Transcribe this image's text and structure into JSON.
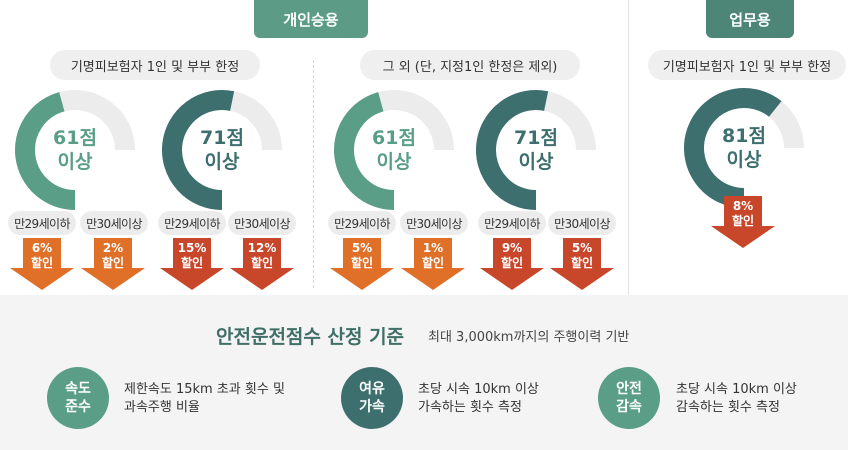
{
  "header": {
    "personal_tab": "개인승용",
    "business_tab": "업무용"
  },
  "pills": {
    "personal_limited": "기명피보험자 1인 및 부부 한정",
    "personal_other": "그 외 (단, 지정1인 한정은 제외)",
    "business_limited": "기명피보험자 1인 및 부부 한정"
  },
  "gauges": [
    {
      "line1": "61점",
      "line2": "이상",
      "fill_ratio": 0.61,
      "color": "#5a9e87"
    },
    {
      "line1": "71점",
      "line2": "이상",
      "fill_ratio": 0.71,
      "color": "#3d6f6e"
    },
    {
      "line1": "61점",
      "line2": "이상",
      "fill_ratio": 0.61,
      "color": "#5a9e87"
    },
    {
      "line1": "71점",
      "line2": "이상",
      "fill_ratio": 0.71,
      "color": "#3d6f6e"
    },
    {
      "line1": "81점",
      "line2": "이상",
      "fill_ratio": 0.81,
      "color": "#3d6f6e"
    }
  ],
  "age_labels": {
    "under29": "만29세이하",
    "over30": "만30세이상"
  },
  "discounts": [
    {
      "line1": "6%",
      "line2": "할인",
      "color": "#e07028"
    },
    {
      "line1": "2%",
      "line2": "할인",
      "color": "#e07028"
    },
    {
      "line1": "15%",
      "line2": "할인",
      "color": "#c8472a"
    },
    {
      "line1": "12%",
      "line2": "할인",
      "color": "#c8472a"
    },
    {
      "line1": "5%",
      "line2": "할인",
      "color": "#e07028"
    },
    {
      "line1": "1%",
      "line2": "할인",
      "color": "#e07028"
    },
    {
      "line1": "9%",
      "line2": "할인",
      "color": "#c8472a"
    },
    {
      "line1": "5%",
      "line2": "할인",
      "color": "#c8472a"
    },
    {
      "line1": "8%",
      "line2": "할인",
      "color": "#c8472a"
    }
  ],
  "criteria": {
    "title": "안전운전점수 산정 기준",
    "subtitle": "최대 3,000km까지의 주행이력 기반",
    "items": [
      {
        "circle_line1": "속도",
        "circle_line2": "준수",
        "desc_line1": "제한속도 15km 초과 횟수 및",
        "desc_line2": "과속주행 비율",
        "color": "#5a9e87"
      },
      {
        "circle_line1": "여유",
        "circle_line2": "가속",
        "desc_line1": "초당 시속 10km 이상",
        "desc_line2": "가속하는 횟수 측정",
        "color": "#3d6f6e"
      },
      {
        "circle_line1": "안전",
        "circle_line2": "감속",
        "desc_line1": "초당 시속 10km 이상",
        "desc_line2": "감속하는 횟수 측정",
        "color": "#5a9e87"
      }
    ]
  },
  "colors": {
    "track": "#ececec",
    "teal_light": "#5a9e87",
    "teal_dark": "#3d6f6e",
    "orange": "#e07028",
    "red_orange": "#c8472a"
  }
}
